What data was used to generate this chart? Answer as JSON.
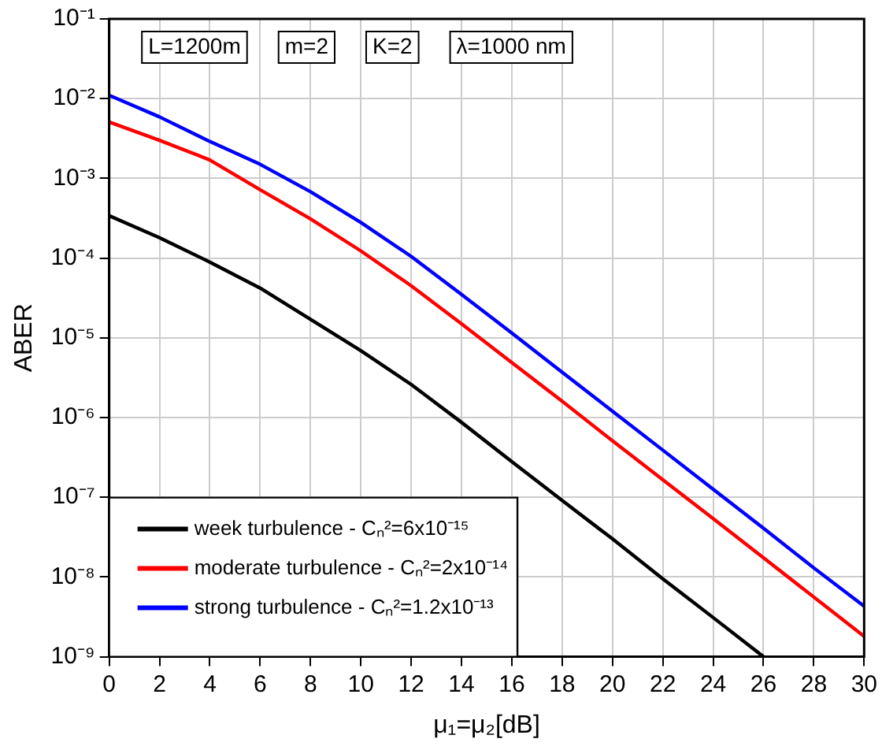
{
  "chart_data": {
    "type": "line",
    "xlabel": "μ₁=μ₂[dB]",
    "ylabel": "ABER",
    "x": [
      0,
      2,
      4,
      6,
      8,
      10,
      12,
      14,
      16,
      18,
      20,
      22,
      24,
      26,
      28,
      30
    ],
    "series": [
      {
        "name": "week turbulence - Cₙ²=6x10⁻¹⁵",
        "color": "#000000",
        "x": [
          0,
          2,
          4,
          6,
          8,
          10,
          12,
          14,
          16,
          18,
          20,
          22,
          24,
          26
        ],
        "values": [
          0.00034,
          0.00018,
          8.9e-05,
          4.2e-05,
          1.7e-05,
          6.9e-06,
          2.6e-06,
          8.7e-07,
          2.8e-07,
          9.1e-08,
          3e-08,
          9.5e-09,
          3.1e-09,
          1e-09
        ]
      },
      {
        "name": "moderate turbulence - Cₙ²=2x10⁻¹⁴",
        "color": "#ff0000",
        "values": [
          0.0051,
          0.003,
          0.0017,
          0.00072,
          0.00031,
          0.000123,
          4.5e-05,
          1.5e-05,
          4.9e-06,
          1.6e-06,
          5.1e-07,
          1.66e-07,
          5.4e-08,
          1.74e-08,
          5.6e-09,
          1.8e-09
        ]
      },
      {
        "name": "strong turbulence - Cₙ²=1.2x10⁻¹³",
        "color": "#0000ff",
        "values": [
          0.011,
          0.0059,
          0.0029,
          0.0015,
          0.00068,
          0.00028,
          0.000105,
          3.5e-05,
          1.15e-05,
          3.7e-06,
          1.2e-06,
          3.9e-07,
          1.26e-07,
          4.1e-08,
          1.3e-08,
          4.3e-09
        ]
      }
    ],
    "xlim": [
      0,
      30
    ],
    "xticks": [
      0,
      2,
      4,
      6,
      8,
      10,
      12,
      14,
      16,
      18,
      20,
      22,
      24,
      26,
      28,
      30
    ],
    "ylim": [
      1e-09,
      0.1
    ],
    "yticks": [
      {
        "value": 1e-09,
        "label": "10⁻⁹"
      },
      {
        "value": 1e-08,
        "label": "10⁻⁸"
      },
      {
        "value": 1e-07,
        "label": "10⁻⁷"
      },
      {
        "value": 1e-06,
        "label": "10⁻⁶"
      },
      {
        "value": 1e-05,
        "label": "10⁻⁵"
      },
      {
        "value": 0.0001,
        "label": "10⁻⁴"
      },
      {
        "value": 0.001,
        "label": "10⁻³"
      },
      {
        "value": 0.01,
        "label": "10⁻²"
      },
      {
        "value": 0.1,
        "label": "10⁻¹"
      }
    ],
    "log": "y",
    "grid": true,
    "legend": "bottom left",
    "marker": "none",
    "line_style": "solid",
    "annotations": [
      "L=1200m",
      "m=2",
      "K=2",
      "λ=1000 nm"
    ]
  }
}
